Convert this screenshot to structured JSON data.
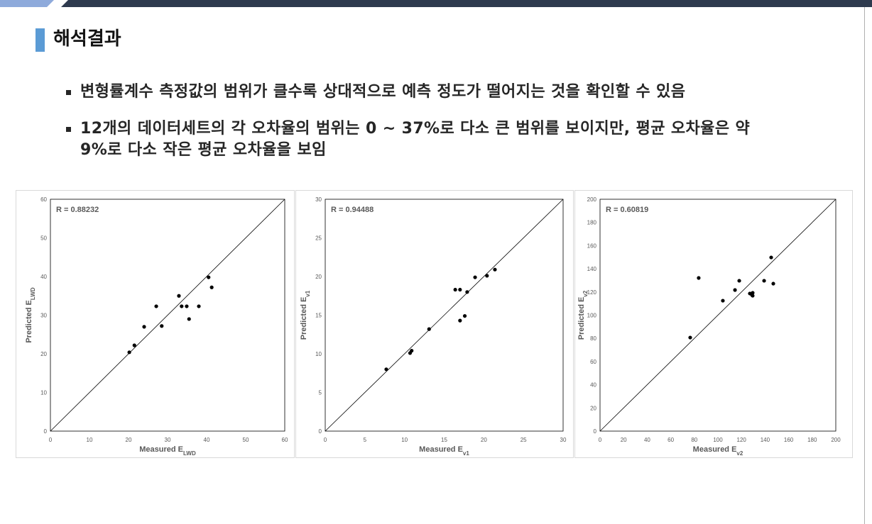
{
  "slide": {
    "title": "해석결과",
    "bullets": [
      {
        "lines": [
          "변형률계수 측정값의 범위가 클수록 상대적으로 예측 정도가 떨어지는 것을 확인할 수 있음"
        ]
      },
      {
        "lines": [
          "12개의 데이터세트의 각 오차율의 범위는 0 ~ 37%로 다소 큰 범위를 보이지만, 평균 오차율은 약",
          "9%로 다소 작은 평균 오차율을 보임"
        ]
      }
    ]
  },
  "colors": {
    "title_accent": "#5b9bd5",
    "banner_dark": "#2e3a4e",
    "banner_light": "#8eaadb",
    "text": "#262626",
    "axis_text": "#595959",
    "marker": "#000000"
  },
  "chart_data": [
    {
      "type": "scatter",
      "annotation": "R = 0.88232",
      "xlabel": {
        "text": "Measured E",
        "sub": "LWD"
      },
      "ylabel": {
        "text": "Predicted E",
        "sub": "LWD"
      },
      "xlim": [
        0,
        60
      ],
      "ylim": [
        0,
        60
      ],
      "xticks": [
        0,
        10,
        20,
        30,
        40,
        50,
        60
      ],
      "yticks": [
        0,
        10,
        20,
        30,
        40,
        50,
        60
      ],
      "grid": false,
      "diagonal_line": true,
      "points": [
        [
          20.2,
          20.4
        ],
        [
          21.5,
          22.2
        ],
        [
          24.0,
          27.0
        ],
        [
          27.1,
          32.3
        ],
        [
          28.5,
          27.2
        ],
        [
          32.9,
          35.0
        ],
        [
          33.6,
          32.3
        ],
        [
          34.9,
          32.3
        ],
        [
          35.5,
          29.0
        ],
        [
          38.0,
          32.3
        ],
        [
          40.5,
          39.8
        ],
        [
          41.3,
          37.2
        ]
      ]
    },
    {
      "type": "scatter",
      "annotation": "R = 0.94488",
      "xlabel": {
        "text": "Measured E",
        "sub": "v1"
      },
      "ylabel": {
        "text": "Predicted E",
        "sub": "v1"
      },
      "xlim": [
        0,
        30
      ],
      "ylim": [
        0,
        30
      ],
      "xticks": [
        0,
        5,
        10,
        15,
        20,
        25,
        30
      ],
      "yticks": [
        0,
        5,
        10,
        15,
        20,
        25,
        30
      ],
      "grid": false,
      "diagonal_line": true,
      "points": [
        [
          7.7,
          8.0
        ],
        [
          10.7,
          10.1
        ],
        [
          10.9,
          10.4
        ],
        [
          13.1,
          13.2
        ],
        [
          16.4,
          18.3
        ],
        [
          17.0,
          18.3
        ],
        [
          17.0,
          14.3
        ],
        [
          17.6,
          14.9
        ],
        [
          17.9,
          18.0
        ],
        [
          18.9,
          19.9
        ],
        [
          20.4,
          20.1
        ],
        [
          21.4,
          20.9
        ]
      ]
    },
    {
      "type": "scatter",
      "annotation": "R = 0.60819",
      "xlabel": {
        "text": "Measured E",
        "sub": "v2"
      },
      "ylabel": {
        "text": "Predicted E",
        "sub": "v2"
      },
      "xlim": [
        0,
        200
      ],
      "ylim": [
        0,
        200
      ],
      "xticks": [
        0,
        20,
        40,
        60,
        80,
        100,
        120,
        140,
        160,
        180,
        200
      ],
      "yticks": [
        0,
        20,
        40,
        60,
        80,
        100,
        120,
        140,
        160,
        180,
        200
      ],
      "grid": false,
      "diagonal_line": true,
      "points": [
        [
          76.5,
          80.7
        ],
        [
          83.7,
          132.1
        ],
        [
          104.2,
          112.5
        ],
        [
          114.5,
          121.7
        ],
        [
          118.1,
          129.7
        ],
        [
          127.1,
          118.7
        ],
        [
          128.9,
          117.4
        ],
        [
          129.5,
          116.8
        ],
        [
          129.5,
          119.3
        ],
        [
          139.2,
          129.7
        ],
        [
          145.2,
          149.8
        ],
        [
          147.0,
          127.2
        ]
      ]
    }
  ]
}
